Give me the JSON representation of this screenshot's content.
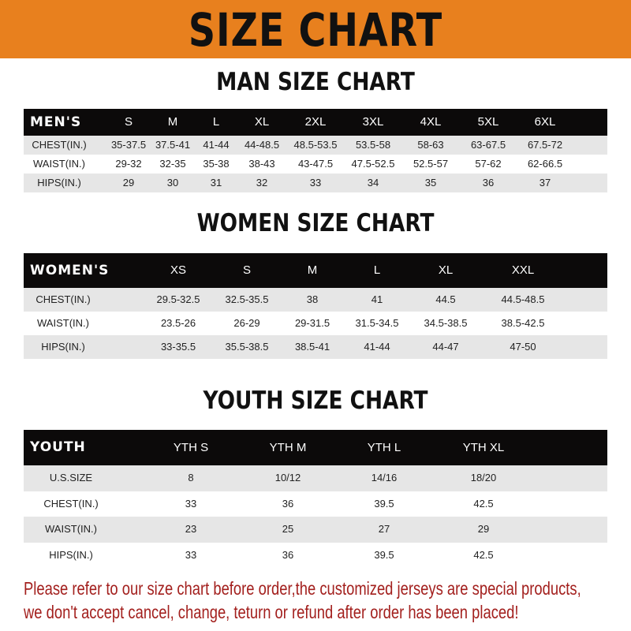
{
  "banner": {
    "title": "SIZE CHART",
    "color": "#E8801E"
  },
  "men": {
    "title": "MAN SIZE CHART",
    "header": [
      "MEN'S",
      "S",
      "M",
      "L",
      "XL",
      "2XL",
      "3XL",
      "4XL",
      "5XL",
      "6XL"
    ],
    "rows": [
      [
        "CHEST(IN.)",
        "35-37.5",
        "37.5-41",
        "41-44",
        "44-48.5",
        "48.5-53.5",
        "53.5-58",
        "58-63",
        "63-67.5",
        "67.5-72"
      ],
      [
        "WAIST(IN.)",
        "29-32",
        "32-35",
        "35-38",
        "38-43",
        "43-47.5",
        "47.5-52.5",
        "52.5-57",
        "57-62",
        "62-66.5"
      ],
      [
        "HIPS(IN.)",
        "29",
        "30",
        "31",
        "32",
        "33",
        "34",
        "35",
        "36",
        "37"
      ]
    ]
  },
  "women": {
    "title": "WOMEN SIZE CHART",
    "header": [
      "WOMEN'S",
      "XS",
      "S",
      "M",
      "L",
      "XL",
      "XXL"
    ],
    "rows": [
      [
        "CHEST(IN.)",
        "29.5-32.5",
        "32.5-35.5",
        "38",
        "41",
        "44.5",
        "44.5-48.5"
      ],
      [
        "WAIST(IN.)",
        "23.5-26",
        "26-29",
        "29-31.5",
        "31.5-34.5",
        "34.5-38.5",
        "38.5-42.5"
      ],
      [
        "HIPS(IN.)",
        "33-35.5",
        "35.5-38.5",
        "38.5-41",
        "41-44",
        "44-47",
        "47-50"
      ]
    ]
  },
  "youth": {
    "title": "YOUTH SIZE CHART",
    "header": [
      "YOUTH",
      "YTH S",
      "YTH M",
      "YTH L",
      "YTH XL"
    ],
    "rows": [
      [
        "U.S.SIZE",
        "8",
        "10/12",
        "14/16",
        "18/20"
      ],
      [
        "CHEST(IN.)",
        "33",
        "36",
        "39.5",
        "42.5"
      ],
      [
        "WAIST(IN.)",
        "23",
        "25",
        "27",
        "29"
      ],
      [
        "HIPS(IN.)",
        "33",
        "36",
        "39.5",
        "42.5"
      ]
    ]
  },
  "footer": {
    "line1": "Please refer to our size chart before order,the customized jerseys are special products,",
    "line2": "we don't accept cancel, change, teturn or refund after order has been placed!",
    "color": "#A3201E"
  }
}
